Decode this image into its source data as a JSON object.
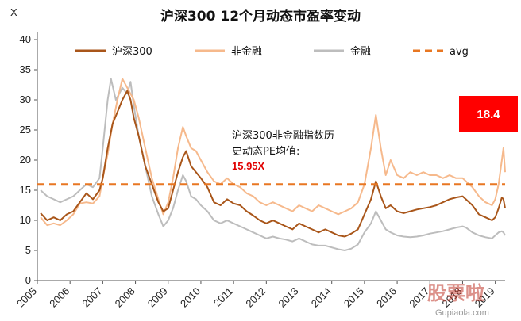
{
  "chart_data": {
    "type": "line",
    "title": "沪深300 12个月动态市盈率变动",
    "ylabel": "X",
    "ylim": [
      0,
      40
    ],
    "yticks": [
      0,
      5,
      10,
      15,
      20,
      25,
      30,
      35,
      40
    ],
    "xlim": [
      2005.0,
      2019.3
    ],
    "xticks": [
      "2005",
      "2006",
      "2007",
      "2008",
      "2009",
      "2010",
      "2011",
      "2012",
      "2013",
      "2014",
      "2015",
      "2016",
      "2017",
      "2018",
      "2019"
    ],
    "grid": false,
    "legend_position": "top",
    "series": [
      {
        "name": "沪深300",
        "color": "#a9561a",
        "style": "solid",
        "points": [
          [
            2005.1,
            11.2
          ],
          [
            2005.3,
            10.0
          ],
          [
            2005.5,
            10.5
          ],
          [
            2005.7,
            10.0
          ],
          [
            2005.9,
            11.0
          ],
          [
            2006.1,
            11.5
          ],
          [
            2006.3,
            13.0
          ],
          [
            2006.5,
            14.5
          ],
          [
            2006.7,
            13.5
          ],
          [
            2006.9,
            15.0
          ],
          [
            2007.0,
            17.0
          ],
          [
            2007.15,
            22.0
          ],
          [
            2007.3,
            26.0
          ],
          [
            2007.45,
            28.0
          ],
          [
            2007.6,
            30.0
          ],
          [
            2007.75,
            31.5
          ],
          [
            2007.85,
            30.0
          ],
          [
            2007.95,
            27.0
          ],
          [
            2008.1,
            24.0
          ],
          [
            2008.3,
            19.0
          ],
          [
            2008.5,
            16.0
          ],
          [
            2008.7,
            13.0
          ],
          [
            2008.85,
            11.5
          ],
          [
            2009.0,
            12.0
          ],
          [
            2009.15,
            15.0
          ],
          [
            2009.3,
            18.0
          ],
          [
            2009.45,
            20.5
          ],
          [
            2009.55,
            21.5
          ],
          [
            2009.7,
            19.0
          ],
          [
            2009.85,
            18.0
          ],
          [
            2010.0,
            17.0
          ],
          [
            2010.2,
            15.5
          ],
          [
            2010.4,
            13.0
          ],
          [
            2010.6,
            12.5
          ],
          [
            2010.8,
            13.5
          ],
          [
            2011.0,
            12.8
          ],
          [
            2011.2,
            12.5
          ],
          [
            2011.4,
            11.5
          ],
          [
            2011.6,
            10.8
          ],
          [
            2011.8,
            10.0
          ],
          [
            2012.0,
            9.5
          ],
          [
            2012.2,
            10.0
          ],
          [
            2012.4,
            9.5
          ],
          [
            2012.6,
            9.0
          ],
          [
            2012.8,
            8.5
          ],
          [
            2013.0,
            9.5
          ],
          [
            2013.2,
            9.0
          ],
          [
            2013.4,
            8.5
          ],
          [
            2013.6,
            8.0
          ],
          [
            2013.8,
            8.5
          ],
          [
            2014.0,
            8.0
          ],
          [
            2014.2,
            7.5
          ],
          [
            2014.4,
            7.3
          ],
          [
            2014.6,
            7.8
          ],
          [
            2014.8,
            8.5
          ],
          [
            2015.0,
            11.0
          ],
          [
            2015.2,
            13.5
          ],
          [
            2015.35,
            16.5
          ],
          [
            2015.5,
            14.0
          ],
          [
            2015.65,
            12.0
          ],
          [
            2015.8,
            12.5
          ],
          [
            2016.0,
            11.5
          ],
          [
            2016.2,
            11.2
          ],
          [
            2016.4,
            11.5
          ],
          [
            2016.6,
            11.8
          ],
          [
            2016.8,
            12.0
          ],
          [
            2017.0,
            12.2
          ],
          [
            2017.2,
            12.5
          ],
          [
            2017.4,
            13.0
          ],
          [
            2017.6,
            13.5
          ],
          [
            2017.8,
            13.8
          ],
          [
            2018.0,
            14.0
          ],
          [
            2018.1,
            13.5
          ],
          [
            2018.3,
            12.5
          ],
          [
            2018.5,
            11.0
          ],
          [
            2018.7,
            10.5
          ],
          [
            2018.9,
            10.0
          ],
          [
            2019.0,
            10.5
          ],
          [
            2019.1,
            12.0
          ],
          [
            2019.2,
            13.8
          ],
          [
            2019.25,
            13.5
          ],
          [
            2019.3,
            12.0
          ]
        ]
      },
      {
        "name": "非金融",
        "color": "#f6b98c",
        "style": "solid",
        "points": [
          [
            2005.1,
            10.5
          ],
          [
            2005.3,
            9.2
          ],
          [
            2005.5,
            9.5
          ],
          [
            2005.7,
            9.2
          ],
          [
            2005.9,
            10.0
          ],
          [
            2006.1,
            11.0
          ],
          [
            2006.3,
            12.8
          ],
          [
            2006.5,
            13.0
          ],
          [
            2006.7,
            12.8
          ],
          [
            2006.9,
            14.0
          ],
          [
            2007.0,
            17.0
          ],
          [
            2007.15,
            21.0
          ],
          [
            2007.3,
            26.0
          ],
          [
            2007.45,
            30.0
          ],
          [
            2007.6,
            33.5
          ],
          [
            2007.75,
            32.0
          ],
          [
            2007.85,
            31.0
          ],
          [
            2007.95,
            30.0
          ],
          [
            2008.1,
            27.0
          ],
          [
            2008.3,
            22.0
          ],
          [
            2008.5,
            17.0
          ],
          [
            2008.7,
            13.5
          ],
          [
            2008.85,
            11.0
          ],
          [
            2009.0,
            13.0
          ],
          [
            2009.15,
            17.0
          ],
          [
            2009.3,
            22.0
          ],
          [
            2009.45,
            25.5
          ],
          [
            2009.55,
            24.0
          ],
          [
            2009.7,
            22.0
          ],
          [
            2009.85,
            21.5
          ],
          [
            2010.0,
            20.0
          ],
          [
            2010.2,
            18.0
          ],
          [
            2010.4,
            16.5
          ],
          [
            2010.6,
            16.0
          ],
          [
            2010.8,
            17.0
          ],
          [
            2011.0,
            16.0
          ],
          [
            2011.2,
            15.5
          ],
          [
            2011.4,
            14.5
          ],
          [
            2011.6,
            14.0
          ],
          [
            2011.8,
            13.0
          ],
          [
            2012.0,
            12.5
          ],
          [
            2012.2,
            13.0
          ],
          [
            2012.4,
            12.5
          ],
          [
            2012.6,
            12.0
          ],
          [
            2012.8,
            11.5
          ],
          [
            2013.0,
            12.5
          ],
          [
            2013.2,
            12.0
          ],
          [
            2013.4,
            11.5
          ],
          [
            2013.6,
            12.5
          ],
          [
            2013.8,
            12.0
          ],
          [
            2014.0,
            11.5
          ],
          [
            2014.2,
            11.0
          ],
          [
            2014.4,
            11.5
          ],
          [
            2014.6,
            12.0
          ],
          [
            2014.8,
            13.0
          ],
          [
            2015.0,
            16.0
          ],
          [
            2015.2,
            22.0
          ],
          [
            2015.35,
            27.5
          ],
          [
            2015.5,
            22.0
          ],
          [
            2015.65,
            17.5
          ],
          [
            2015.8,
            20.0
          ],
          [
            2016.0,
            17.5
          ],
          [
            2016.2,
            17.0
          ],
          [
            2016.4,
            18.0
          ],
          [
            2016.6,
            17.5
          ],
          [
            2016.8,
            18.0
          ],
          [
            2017.0,
            17.5
          ],
          [
            2017.2,
            17.5
          ],
          [
            2017.4,
            17.0
          ],
          [
            2017.6,
            17.5
          ],
          [
            2017.8,
            17.0
          ],
          [
            2018.0,
            17.0
          ],
          [
            2018.1,
            16.5
          ],
          [
            2018.3,
            15.5
          ],
          [
            2018.5,
            14.0
          ],
          [
            2018.7,
            13.0
          ],
          [
            2018.9,
            12.5
          ],
          [
            2019.0,
            13.5
          ],
          [
            2019.1,
            16.0
          ],
          [
            2019.2,
            20.0
          ],
          [
            2019.25,
            22.0
          ],
          [
            2019.3,
            18.0
          ]
        ]
      },
      {
        "name": "金融",
        "color": "#bdbdbd",
        "style": "solid",
        "points": [
          [
            2005.1,
            15.0
          ],
          [
            2005.3,
            14.0
          ],
          [
            2005.5,
            13.5
          ],
          [
            2005.7,
            13.0
          ],
          [
            2005.9,
            13.5
          ],
          [
            2006.1,
            14.0
          ],
          [
            2006.3,
            15.0
          ],
          [
            2006.5,
            16.0
          ],
          [
            2006.7,
            15.5
          ],
          [
            2006.9,
            17.0
          ],
          [
            2007.0,
            22.0
          ],
          [
            2007.15,
            30.0
          ],
          [
            2007.25,
            33.5
          ],
          [
            2007.4,
            30.0
          ],
          [
            2007.6,
            32.0
          ],
          [
            2007.75,
            31.0
          ],
          [
            2007.85,
            33.0
          ],
          [
            2007.95,
            29.0
          ],
          [
            2008.1,
            24.0
          ],
          [
            2008.3,
            19.0
          ],
          [
            2008.5,
            14.0
          ],
          [
            2008.7,
            11.0
          ],
          [
            2008.85,
            9.0
          ],
          [
            2009.0,
            10.0
          ],
          [
            2009.15,
            12.0
          ],
          [
            2009.3,
            15.0
          ],
          [
            2009.45,
            17.5
          ],
          [
            2009.55,
            16.5
          ],
          [
            2009.7,
            14.0
          ],
          [
            2009.85,
            13.5
          ],
          [
            2010.0,
            12.5
          ],
          [
            2010.2,
            11.5
          ],
          [
            2010.4,
            10.0
          ],
          [
            2010.6,
            9.5
          ],
          [
            2010.8,
            10.0
          ],
          [
            2011.0,
            9.5
          ],
          [
            2011.2,
            9.0
          ],
          [
            2011.4,
            8.5
          ],
          [
            2011.6,
            8.0
          ],
          [
            2011.8,
            7.5
          ],
          [
            2012.0,
            7.0
          ],
          [
            2012.2,
            7.3
          ],
          [
            2012.4,
            7.0
          ],
          [
            2012.6,
            6.8
          ],
          [
            2012.8,
            6.5
          ],
          [
            2013.0,
            7.0
          ],
          [
            2013.2,
            6.5
          ],
          [
            2013.4,
            6.0
          ],
          [
            2013.6,
            5.8
          ],
          [
            2013.8,
            5.8
          ],
          [
            2014.0,
            5.5
          ],
          [
            2014.2,
            5.2
          ],
          [
            2014.4,
            5.0
          ],
          [
            2014.6,
            5.3
          ],
          [
            2014.8,
            6.0
          ],
          [
            2015.0,
            8.0
          ],
          [
            2015.2,
            9.5
          ],
          [
            2015.35,
            11.5
          ],
          [
            2015.5,
            10.0
          ],
          [
            2015.65,
            8.5
          ],
          [
            2015.8,
            8.0
          ],
          [
            2016.0,
            7.5
          ],
          [
            2016.2,
            7.3
          ],
          [
            2016.4,
            7.2
          ],
          [
            2016.6,
            7.3
          ],
          [
            2016.8,
            7.5
          ],
          [
            2017.0,
            7.8
          ],
          [
            2017.2,
            8.0
          ],
          [
            2017.4,
            8.2
          ],
          [
            2017.6,
            8.5
          ],
          [
            2017.8,
            8.8
          ],
          [
            2018.0,
            9.0
          ],
          [
            2018.1,
            8.8
          ],
          [
            2018.3,
            8.0
          ],
          [
            2018.5,
            7.5
          ],
          [
            2018.7,
            7.2
          ],
          [
            2018.9,
            7.0
          ],
          [
            2019.0,
            7.5
          ],
          [
            2019.1,
            8.0
          ],
          [
            2019.2,
            8.2
          ],
          [
            2019.25,
            8.0
          ],
          [
            2019.3,
            7.5
          ]
        ]
      },
      {
        "name": "avg",
        "color": "#e87722",
        "style": "dashed",
        "points": [
          [
            2005.0,
            15.95
          ],
          [
            2019.3,
            15.95
          ]
        ]
      }
    ],
    "annotations": {
      "text_line1": "沪深300非金融指数历",
      "text_line2": "史动态PE均值:",
      "avg_value": "15.95X",
      "badge_value": "18.4",
      "badge_color": "#ff0000"
    }
  },
  "watermark": {
    "main": "股票啦",
    "sub": "Gupiaola.com"
  }
}
